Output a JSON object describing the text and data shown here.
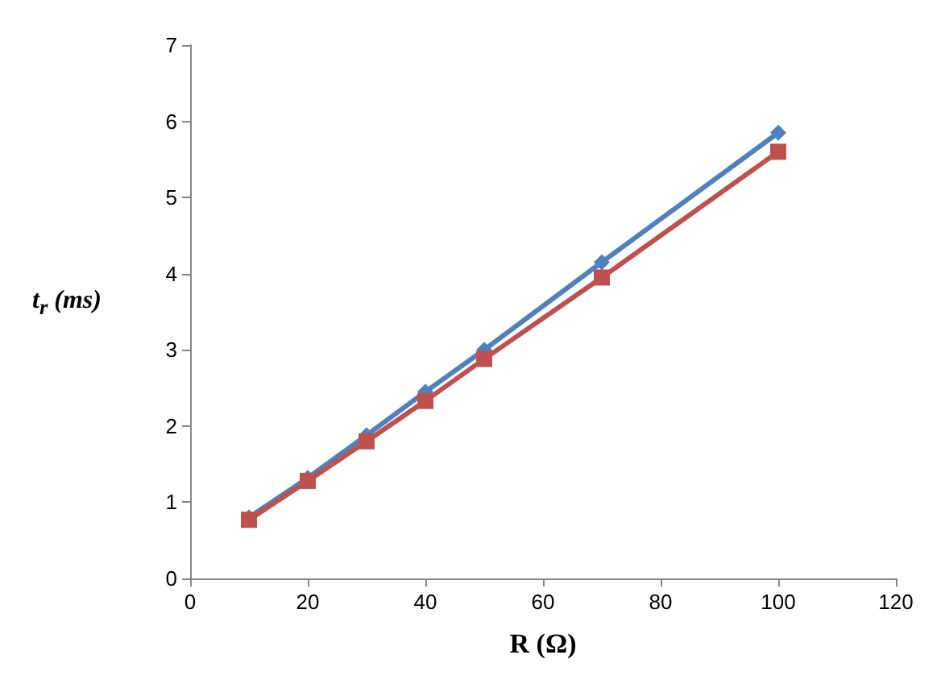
{
  "chart_data": {
    "type": "line",
    "xlabel": "R (Ω)",
    "ylabel": "t$_{r}$ (ms)",
    "x": [
      10,
      20,
      30,
      40,
      50,
      70,
      100
    ],
    "series": [
      {
        "color": "#4f81bd",
        "marker": "diamond",
        "values": [
          0.8,
          1.32,
          1.88,
          2.45,
          3.0,
          4.15,
          5.85
        ]
      },
      {
        "color": "#c0504d",
        "marker": "square",
        "values": [
          0.77,
          1.28,
          1.8,
          2.33,
          2.88,
          3.95,
          5.6
        ]
      }
    ],
    "xlim": [
      0,
      120
    ],
    "xticks": [
      0,
      20,
      40,
      60,
      80,
      100,
      120
    ],
    "ylim": [
      0,
      7
    ],
    "yticks": [
      0,
      1,
      2,
      3,
      4,
      5,
      6,
      7
    ],
    "grid": false
  }
}
